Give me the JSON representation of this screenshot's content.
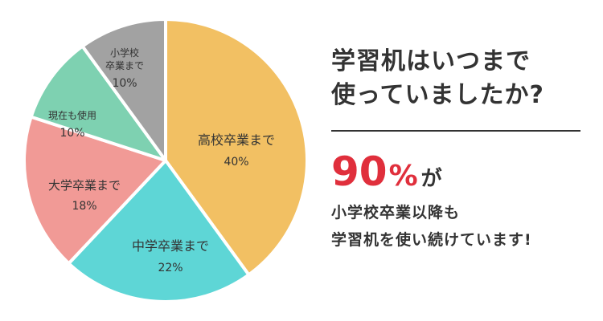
{
  "chart_data": {
    "type": "pie",
    "start": "12 o'clock",
    "direction": "clockwise",
    "slices": [
      {
        "label": "高校卒業まで",
        "value": 40,
        "value_label": "40%",
        "color": "#f2c063"
      },
      {
        "label": "中学卒業まで",
        "value": 22,
        "value_label": "22%",
        "color": "#5ed6d6"
      },
      {
        "label": "大学卒業まで",
        "value": 18,
        "value_label": "18%",
        "color": "#f19a96"
      },
      {
        "label": "現在も使用",
        "value": 10,
        "value_label": "10%",
        "color": "#7ed1b1"
      },
      {
        "label": "小学校\n卒業まで",
        "value": 10,
        "value_label": "10%",
        "color": "#a2a2a2"
      }
    ]
  },
  "text": {
    "question": "学習机はいつまで\n使っていましたか?",
    "highlight_number": "90",
    "highlight_unit": "%",
    "highlight_suffix": "が",
    "sub_line1": "小学校卒業以降も",
    "sub_line2": "学習机を使い続けています!"
  }
}
